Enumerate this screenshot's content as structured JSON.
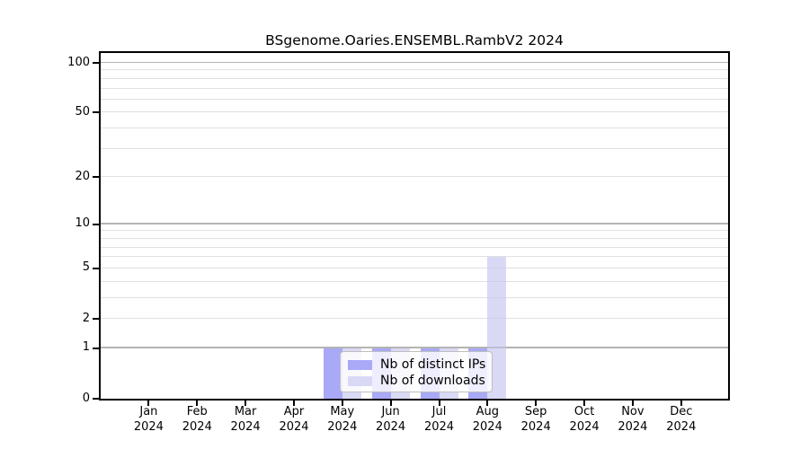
{
  "chart_data": {
    "type": "bar",
    "title": "BSgenome.Oaries.ENSEMBL.RambV2 2024",
    "x_categories": [
      "Jan",
      "Feb",
      "Mar",
      "Apr",
      "May",
      "Jun",
      "Jul",
      "Aug",
      "Sep",
      "Oct",
      "Nov",
      "Dec"
    ],
    "x_year": "2024",
    "series": [
      {
        "name": "Nb of distinct IPs",
        "color": "#a9a9f7",
        "values": [
          0,
          0,
          0,
          0,
          1,
          1,
          1,
          1,
          0,
          0,
          0,
          0
        ]
      },
      {
        "name": "Nb of downloads",
        "color": "#d9d9f6",
        "values": [
          0,
          0,
          0,
          0,
          1,
          1,
          1,
          6,
          0,
          0,
          0,
          0
        ]
      }
    ],
    "y_scale": "log1p",
    "y_ticks": [
      0,
      1,
      2,
      5,
      10,
      20,
      50,
      100
    ],
    "y_axis_max": 100,
    "y_major_gridlines": [
      1,
      10,
      100
    ],
    "y_minor_gridlines": [
      2,
      3,
      4,
      5,
      6,
      7,
      8,
      9,
      20,
      30,
      40,
      50,
      60,
      70,
      80,
      90
    ],
    "grid": true,
    "legend_position": "bottom-center"
  },
  "colors": {
    "background": "#ffffff",
    "frame": "#000000",
    "major_gridline": "#cccccc",
    "minor_gridline": "#ededed",
    "legend_border": "#bfbfbf"
  }
}
